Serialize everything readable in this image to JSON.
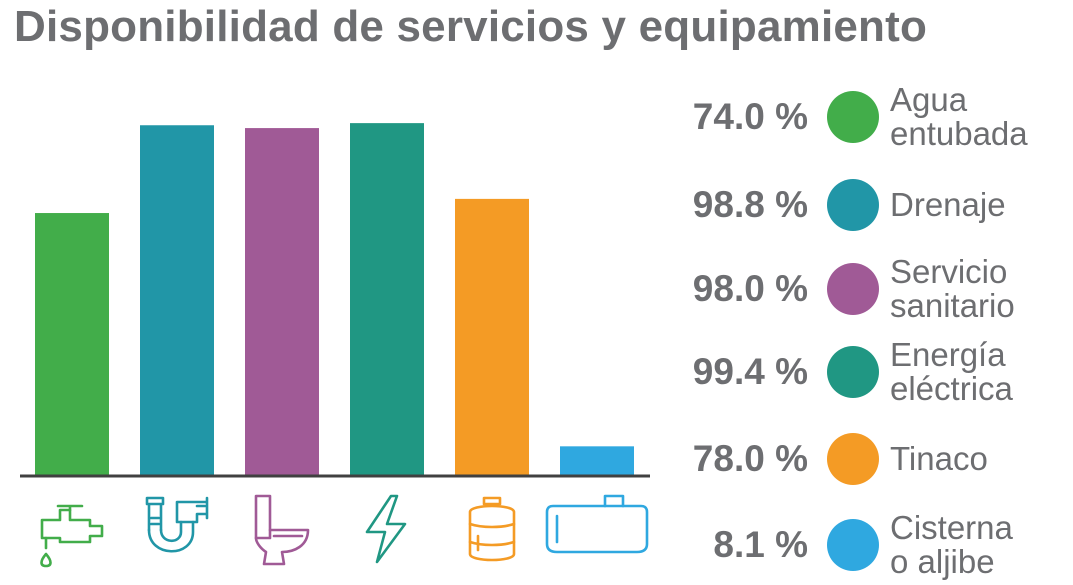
{
  "title": "Disponibilidad de servicios y equipamiento",
  "chart_data": {
    "type": "bar",
    "ylim": [
      0,
      100
    ],
    "series": [
      {
        "label": "Agua entubada",
        "label_lines": "Agua\nentubada",
        "value": 74.0,
        "display": "74.0 %",
        "color": "#42ad4a",
        "icon": "faucet-icon"
      },
      {
        "label": "Drenaje",
        "label_lines": "Drenaje",
        "value": 98.8,
        "display": "98.8 %",
        "color": "#2196a7",
        "icon": "pipe-icon"
      },
      {
        "label": "Servicio sanitario",
        "label_lines": "Servicio\nsanitario",
        "value": 98.0,
        "display": "98.0 %",
        "color": "#a05a96",
        "icon": "toilet-icon"
      },
      {
        "label": "Energía eléctrica",
        "label_lines": "Energía\neléctrica",
        "value": 99.4,
        "display": "99.4 %",
        "color": "#209783",
        "icon": "lightning-icon"
      },
      {
        "label": "Tinaco",
        "label_lines": "Tinaco",
        "value": 78.0,
        "display": "78.0 %",
        "color": "#f49b25",
        "icon": "water-tank-icon"
      },
      {
        "label": "Cisterna o aljibe",
        "label_lines": "Cisterna\no aljibe",
        "value": 8.1,
        "display": "8.1 %",
        "color": "#2fa8e0",
        "icon": "cistern-icon"
      }
    ]
  }
}
